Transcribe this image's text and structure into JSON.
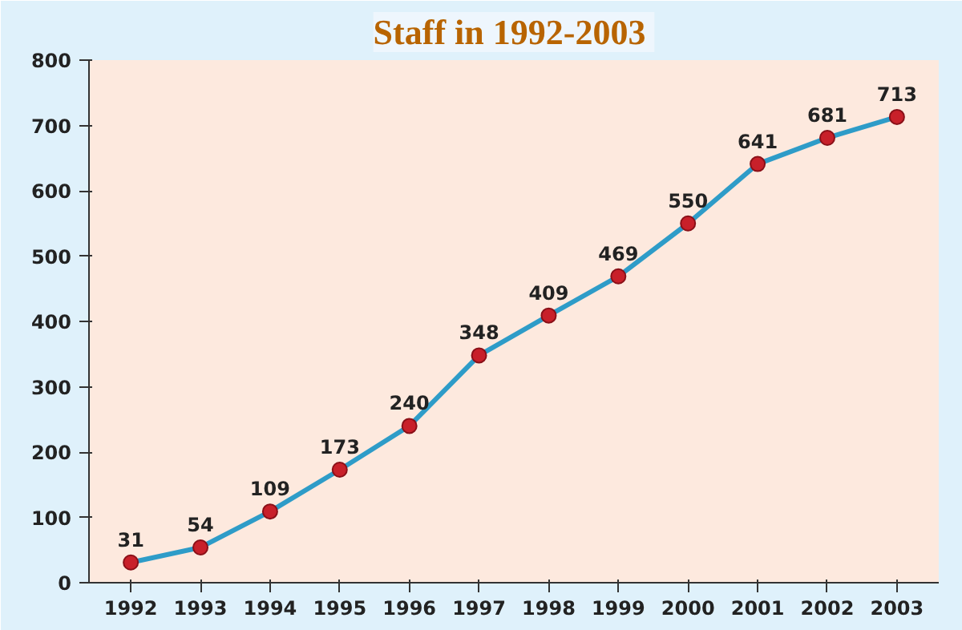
{
  "chart_data": {
    "type": "line",
    "title": "Staff  in 1992-2003",
    "categories": [
      "1992",
      "1993",
      "1994",
      "1995",
      "1996",
      "1997",
      "1998",
      "1999",
      "2000",
      "2001",
      "2002",
      "2003"
    ],
    "values": [
      31,
      54,
      109,
      173,
      240,
      348,
      409,
      469,
      550,
      641,
      681,
      713
    ],
    "color": "#2e9cc8",
    "marker": "circle",
    "line_style": "solid",
    "ylim": [
      0,
      800
    ],
    "yticks": [
      0,
      100,
      200,
      300,
      400,
      500,
      600,
      700,
      800
    ],
    "grid": false,
    "data_labels": true
  }
}
